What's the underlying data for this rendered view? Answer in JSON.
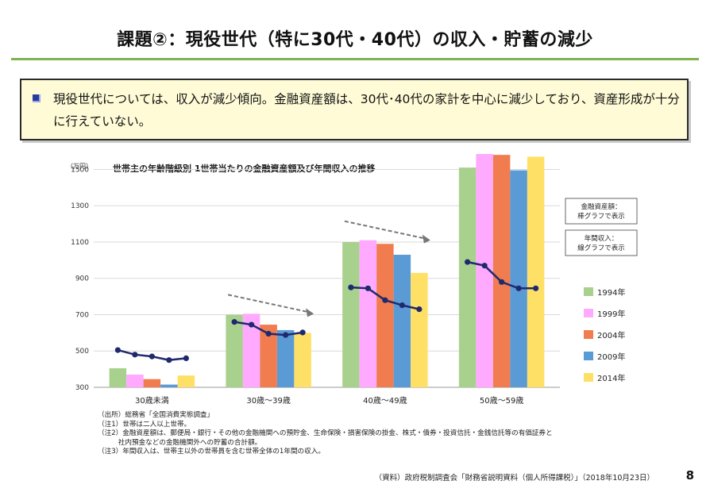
{
  "page": {
    "title": "課題②：現役世代（特に30代・40代）の収入・貯蓄の減少",
    "summary": "現役世代については、収入が減少傾向。金融資産額は、30代･40代の家計を中心に減少しており、資産形成が十分に行えていない。",
    "page_number": "8",
    "source": "（資料）政府税制調査会「財務省説明資料（個人所得課税）」（2018年10月23日）"
  },
  "notes": [
    "（出所）総務省「全国消費実態調査」",
    "（注1）世帯は二人以上世帯。",
    "（注2）金融資産額は、郵便局・銀行・その他の金融機関への預貯金、生命保険・損害保険の掛金、株式・債券・投資信託・金銭信託等の有価証券と",
    "　　　社内預金などの金融機関外への貯蓄の合計額。",
    "（注3）年間収入は、世帯主以外の世帯員を含む世帯全体の1年間の収入。"
  ],
  "chart_data": {
    "type": "bar",
    "title": "世帯主の年齢階級別 1世帯当たりの金融資産額及び年間収入の推移",
    "unit_label": "（万円）",
    "ylim": [
      300,
      1550
    ],
    "yticks": [
      "300",
      "500",
      "700",
      "900",
      "1100",
      "1300",
      "1500"
    ],
    "categories": [
      "30歳未満",
      "30歳～39歳",
      "40歳～49歳",
      "50歳～59歳"
    ],
    "series": [
      {
        "name": "1994年",
        "color": "#a9d18e",
        "values": [
          405,
          700,
          1100,
          1510
        ]
      },
      {
        "name": "1999年",
        "color": "#ffaaff",
        "values": [
          370,
          705,
          1110,
          1585
        ]
      },
      {
        "name": "2004年",
        "color": "#f07c4f",
        "values": [
          345,
          645,
          1090,
          1580
        ]
      },
      {
        "name": "2009年",
        "color": "#5b9bd5",
        "values": [
          315,
          615,
          1030,
          1495
        ]
      },
      {
        "name": "2014年",
        "color": "#ffe066",
        "values": [
          365,
          600,
          930,
          1570
        ]
      }
    ],
    "income_line": {
      "color": "#1f2a6e",
      "values": [
        [
          505,
          480,
          470,
          450,
          460
        ],
        [
          660,
          645,
          595,
          588,
          602
        ],
        [
          850,
          845,
          780,
          752,
          730
        ],
        [
          990,
          970,
          880,
          845,
          845
        ]
      ]
    },
    "legend_boxes": [
      "金融資産額：\n棒グラフで表示",
      "年間収入：\n線グラフで表示"
    ],
    "legend_placement": "right",
    "grid": true
  }
}
